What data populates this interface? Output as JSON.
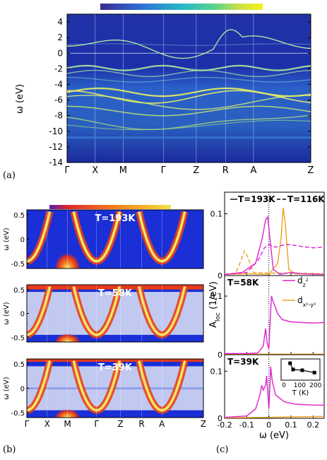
{
  "panel_labels": {
    "a": "(a)",
    "b": "(b)",
    "c": "(c)"
  },
  "colorbar_a": [
    "#3a2a8f",
    "#2f6fd6",
    "#27b7c8",
    "#56d28b",
    "#c9e04a",
    "#f6f21a"
  ],
  "colorbar_b": [
    "#5a1fb0",
    "#e0262b",
    "#f2761e",
    "#f7b52a",
    "#f4e24a"
  ],
  "chart_data": [
    {
      "id": "a",
      "type": "heatmap",
      "title": "",
      "ylabel": "ω (eV)",
      "ylim": [
        -14,
        5
      ],
      "yticks": [
        "4",
        "2",
        "0",
        "-2",
        "-4",
        "-6",
        "-8",
        "-10",
        "-12",
        "-14"
      ],
      "xticks": [
        "Γ",
        "X",
        "M",
        "Γ",
        "Z",
        "R",
        "A",
        "Z"
      ],
      "description_free": true
    },
    {
      "id": "b",
      "type": "heatmap",
      "subpanels": [
        {
          "label": "T=193K",
          "ylabel": "ω (eV)",
          "yticks": [
            "0.5",
            "0",
            "-0.5"
          ]
        },
        {
          "label": "T=58K",
          "ylabel": "ω (eV)",
          "yticks": [
            "0.5",
            "0",
            "-0.5"
          ]
        },
        {
          "label": "T=39K",
          "ylabel": "ω (eV)",
          "yticks": [
            "0.5",
            "0",
            "-0.5"
          ]
        }
      ],
      "xticks": [
        "Γ",
        "X",
        "M",
        "Γ",
        "Z",
        "R",
        "A",
        "Z"
      ]
    },
    {
      "id": "c",
      "type": "line",
      "xlabel": "ω (eV)",
      "ylabel": "A_loc (1/eV)",
      "xlim": [
        -0.2,
        0.25
      ],
      "xticks": [
        "-0.2",
        "-0.1",
        "0",
        "0.1",
        "0.2"
      ],
      "yticks": [
        "0.1",
        "0"
      ],
      "legend_top": {
        "solid": "T=193K",
        "dashed": "T=116K"
      },
      "legend_orbitals": [
        {
          "name": "d_z²",
          "sup": "2",
          "base": "d",
          "sub": "z",
          "color": "#e020d0"
        },
        {
          "name": "d_x²-y²",
          "base": "d",
          "sub": "x²-y²",
          "color": "#f0a020"
        }
      ],
      "subpanel_labels": [
        "T=58K",
        "T=39K"
      ],
      "inset": {
        "xlabel": "T (K)",
        "xticks": [
          "0",
          "100",
          "200"
        ],
        "points": [
          [
            39,
            0.95
          ],
          [
            58,
            0.55
          ],
          [
            116,
            0.5
          ],
          [
            193,
            0.35
          ]
        ]
      },
      "series": {
        "p1_dz2_solid": [
          [
            -0.2,
            0.002
          ],
          [
            -0.12,
            0.005
          ],
          [
            -0.06,
            0.02
          ],
          [
            -0.03,
            0.06
          ],
          [
            -0.015,
            0.09
          ],
          [
            -0.005,
            0.095
          ],
          [
            0.005,
            0.06
          ],
          [
            0.02,
            0.01
          ],
          [
            0.05,
            0.002
          ],
          [
            0.1,
            0.005
          ],
          [
            0.15,
            0.003
          ],
          [
            0.25,
            0.002
          ]
        ],
        "p1_dz2_dashed": [
          [
            -0.2,
            0.002
          ],
          [
            -0.1,
            0.005
          ],
          [
            -0.06,
            0.02
          ],
          [
            -0.04,
            0.03
          ],
          [
            -0.02,
            0.045
          ],
          [
            0,
            0.05
          ],
          [
            0.03,
            0.046
          ],
          [
            0.07,
            0.05
          ],
          [
            0.1,
            0.05
          ],
          [
            0.15,
            0.047
          ],
          [
            0.2,
            0.045
          ],
          [
            0.25,
            0.046
          ]
        ],
        "p1_dx2_solid": [
          [
            -0.2,
            0.002
          ],
          [
            -0.1,
            0.003
          ],
          [
            0,
            0.002
          ],
          [
            0.04,
            0.02
          ],
          [
            0.055,
            0.06
          ],
          [
            0.065,
            0.11
          ],
          [
            0.075,
            0.08
          ],
          [
            0.09,
            0.01
          ],
          [
            0.12,
            0.003
          ],
          [
            0.25,
            0.002
          ]
        ],
        "p1_dx2_dashed": [
          [
            -0.2,
            0.002
          ],
          [
            -0.15,
            0.004
          ],
          [
            -0.125,
            0.025
          ],
          [
            -0.11,
            0.04
          ],
          [
            -0.095,
            0.03
          ],
          [
            -0.07,
            0.005
          ],
          [
            0,
            0.004
          ],
          [
            0.1,
            0.004
          ],
          [
            0.25,
            0.003
          ]
        ],
        "p2_dz2": [
          [
            -0.2,
            0.002
          ],
          [
            -0.1,
            0.002
          ],
          [
            -0.05,
            0.003
          ],
          [
            -0.025,
            0.015
          ],
          [
            -0.015,
            0.045
          ],
          [
            -0.008,
            0.02
          ],
          [
            0,
            0.01
          ],
          [
            0.005,
            0.05
          ],
          [
            0.012,
            0.1
          ],
          [
            0.02,
            0.09
          ],
          [
            0.04,
            0.07
          ],
          [
            0.06,
            0.06
          ],
          [
            0.1,
            0.056
          ],
          [
            0.15,
            0.055
          ],
          [
            0.2,
            0.054
          ],
          [
            0.25,
            0.055
          ]
        ],
        "p2_dx2": [
          [
            -0.2,
            0.001
          ],
          [
            0.25,
            0.001
          ]
        ],
        "p3_dz2": [
          [
            -0.2,
            0.002
          ],
          [
            -0.1,
            0.005
          ],
          [
            -0.06,
            0.02
          ],
          [
            -0.04,
            0.05
          ],
          [
            -0.032,
            0.07
          ],
          [
            -0.025,
            0.06
          ],
          [
            -0.015,
            0.07
          ],
          [
            -0.01,
            0.09
          ],
          [
            -0.004,
            0.05
          ],
          [
            0,
            0.02
          ],
          [
            0.004,
            0.06
          ],
          [
            0.008,
            0.11
          ],
          [
            0.015,
            0.08
          ],
          [
            0.03,
            0.05
          ],
          [
            0.07,
            0.035
          ],
          [
            0.12,
            0.03
          ],
          [
            0.2,
            0.028
          ],
          [
            0.25,
            0.028
          ]
        ],
        "p3_dx2": [
          [
            -0.2,
            0.001
          ],
          [
            0,
            0.002
          ],
          [
            0.1,
            0.003
          ],
          [
            0.25,
            0.004
          ]
        ]
      }
    }
  ]
}
